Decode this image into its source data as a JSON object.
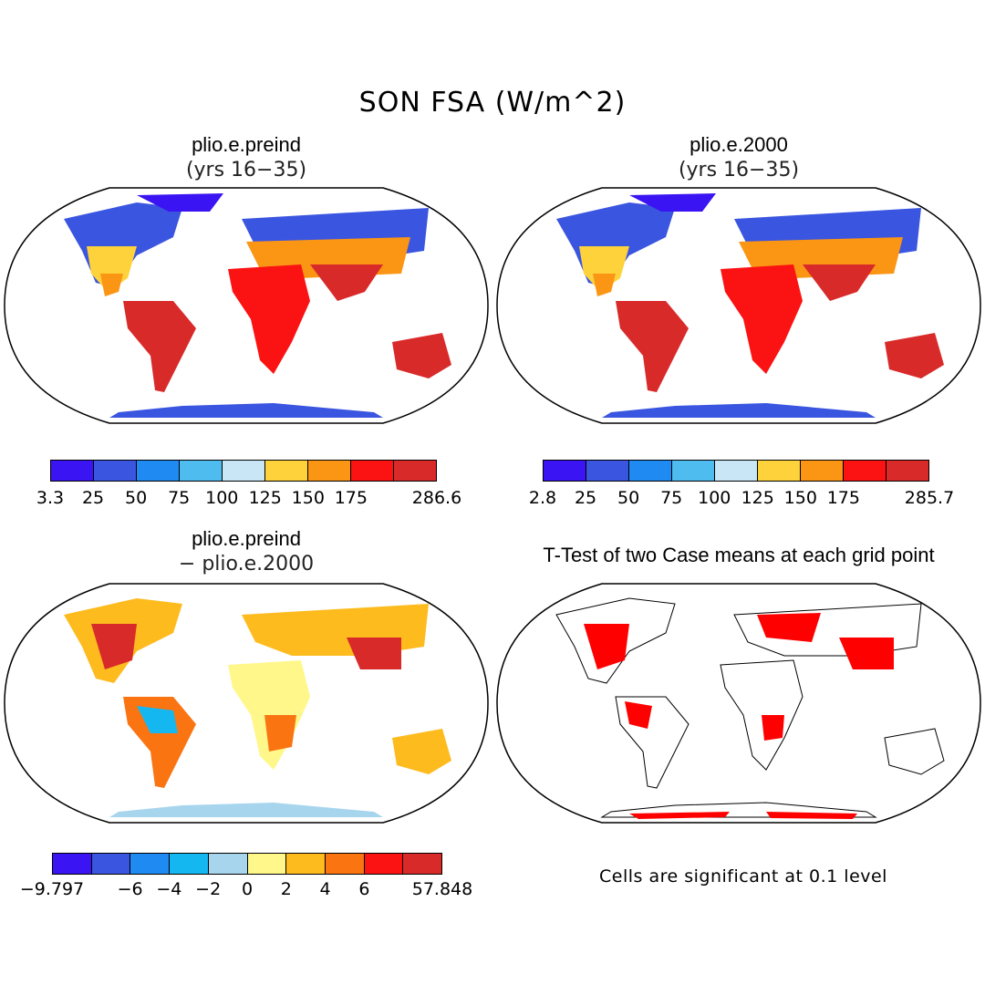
{
  "figure_title": "SON FSA (W/m^2)",
  "panels": [
    {
      "title": "plio.e.preind",
      "subtitle": "(yrs 16−35)",
      "icon": "world-map-icon"
    },
    {
      "title": "plio.e.2000",
      "subtitle": "(yrs 16−35)",
      "icon": "world-map-icon"
    },
    {
      "title": "plio.e.preind",
      "subtitle": "− plio.e.2000",
      "icon": "world-map-icon"
    },
    {
      "title": "T-Test of two Case means at each grid point",
      "subtitle": "",
      "icon": "world-map-icon"
    }
  ],
  "colorbars": [
    {
      "colors": [
        "#3a14f2",
        "#3a55e0",
        "#1e8af2",
        "#4fbcf0",
        "#c8e6f5",
        "#fdd23a",
        "#fb9514",
        "#fb1212",
        "#d92a2a"
      ],
      "ticks": [
        "3.3",
        "25",
        "50",
        "75",
        "100",
        "125",
        "150",
        "175",
        "286.6"
      ]
    },
    {
      "colors": [
        "#3a14f2",
        "#3a55e0",
        "#1e8af2",
        "#4fbcf0",
        "#c8e6f5",
        "#fdd23a",
        "#fb9514",
        "#fb1212",
        "#d92a2a"
      ],
      "ticks": [
        "2.8",
        "25",
        "50",
        "75",
        "100",
        "125",
        "150",
        "175",
        "285.7"
      ]
    },
    {
      "colors": [
        "#3a14f2",
        "#3a55e0",
        "#1e8af2",
        "#15b7f0",
        "#a7d5ee",
        "#fff78a",
        "#fdbb1e",
        "#fb7412",
        "#fb1212",
        "#d92a2a"
      ],
      "ticks": [
        "−9.797",
        "−6",
        "−4",
        "−2",
        "0",
        "2",
        "4",
        "6",
        "57.848"
      ]
    }
  ],
  "significance_note": "Cells are significant at 0.1 level",
  "palette": {
    "sig_red": "#ff0000",
    "ocean": "#ffffff",
    "outline": "#000000"
  }
}
